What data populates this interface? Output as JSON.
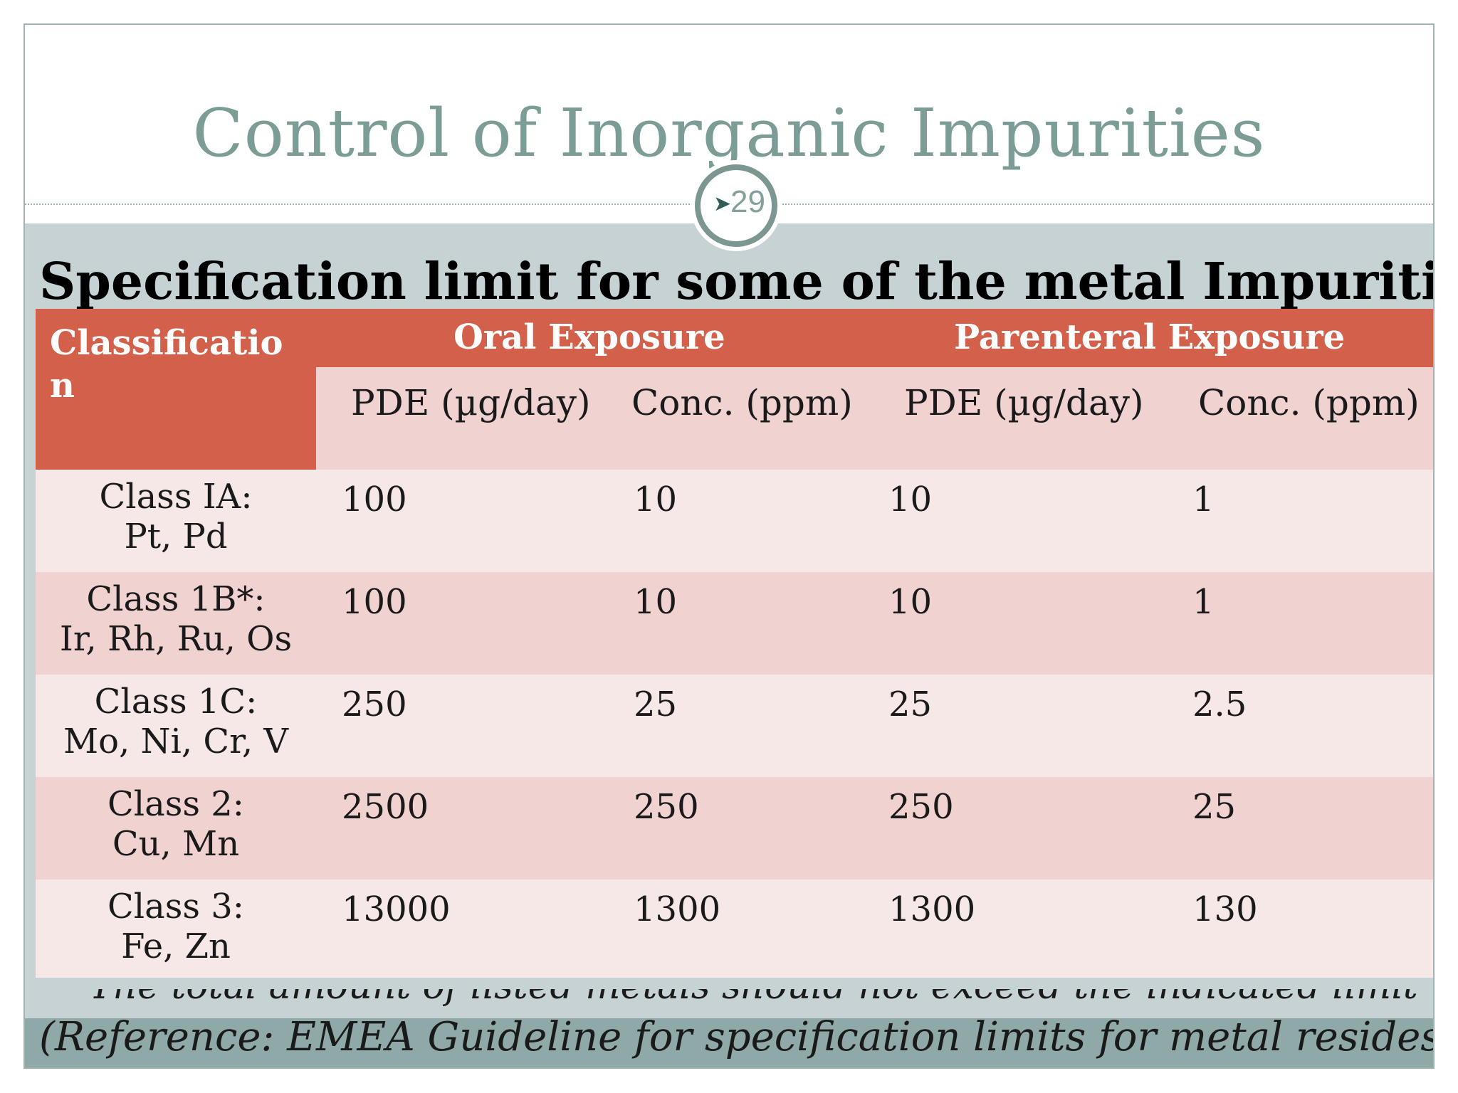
{
  "slide": {
    "title": "Control of Inorganic Impurities",
    "slide_number": "29",
    "heading": "Specification limit for some of the metal Impurities:",
    "reference": "(Reference: EMEA Guideline for specification limits for metal resides)",
    "partially_hidden_note": "The total amount of listed metals should not exceed the indicated limit",
    "colors": {
      "title": "#7c9c96",
      "header_fill": "#d2604a",
      "row_light": "#f7e8e8",
      "row_dark": "#f0d2d1",
      "background": "#c6d2d3",
      "bottom_band": "#8fa9a8"
    }
  },
  "table": {
    "classification_header": "Classification",
    "oral_header": "Oral Exposure",
    "parenteral_header": "Parenteral Exposure",
    "subheaders": [
      "PDE (µg/day)",
      "Conc. (ppm)",
      "PDE (µg/day)",
      "Conc. (ppm)"
    ],
    "rows": [
      {
        "class": "Class IA:",
        "metals": "Pt, Pd",
        "oral_pde": "100",
        "oral_conc": "10",
        "par_pde": "10",
        "par_conc": "1"
      },
      {
        "class": "Class 1B*:",
        "metals": "Ir, Rh, Ru, Os",
        "oral_pde": "100",
        "oral_conc": "10",
        "par_pde": "10",
        "par_conc": "1"
      },
      {
        "class": "Class 1C:",
        "metals": "Mo, Ni, Cr, V",
        "oral_pde": "250",
        "oral_conc": "25",
        "par_pde": "25",
        "par_conc": "2.5"
      },
      {
        "class": "Class 2:",
        "metals": "Cu, Mn",
        "oral_pde": "2500",
        "oral_conc": "250",
        "par_pde": "250",
        "par_conc": "25"
      },
      {
        "class": "Class 3:",
        "metals": "Fe, Zn",
        "oral_pde": "13000",
        "oral_conc": "1300",
        "par_pde": "1300",
        "par_conc": "130"
      }
    ]
  }
}
